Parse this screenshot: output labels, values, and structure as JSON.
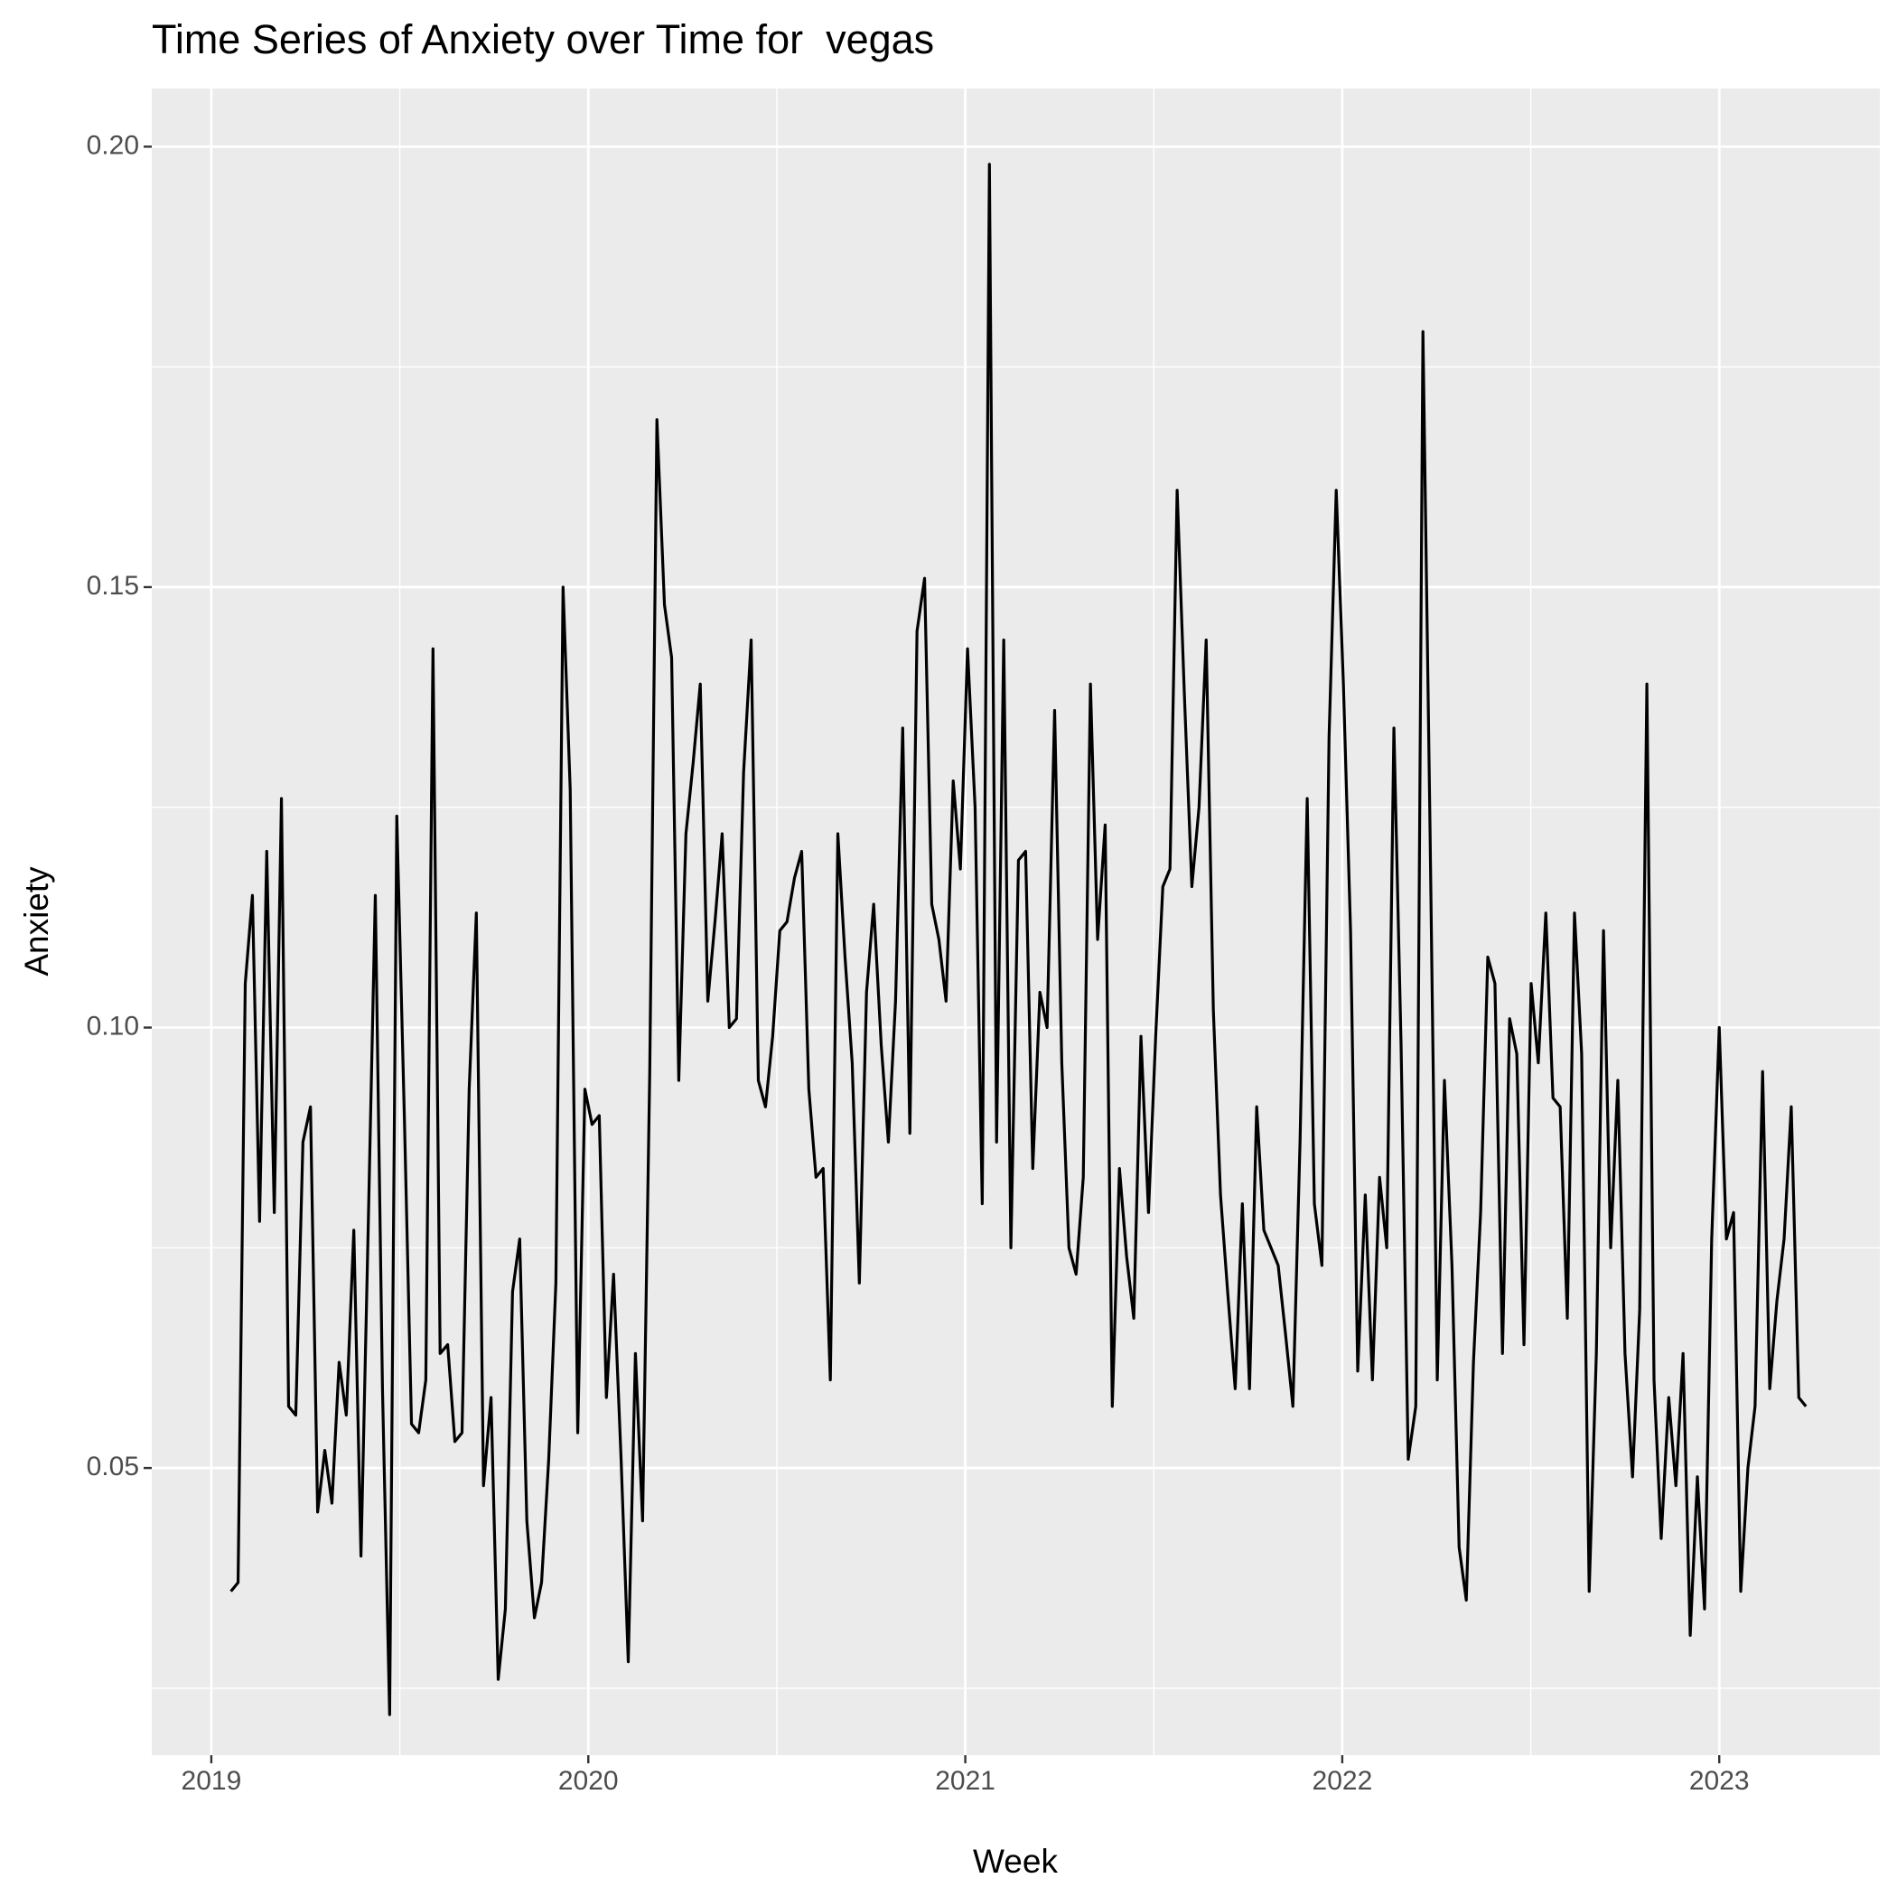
{
  "chart_data": {
    "type": "line",
    "title": "Time Series of Anxiety over Time for  vegas",
    "x_label": "Week",
    "y_label": "Anxiety",
    "color": "#000000",
    "grid": true,
    "xlim": [
      2018.842,
      2023.426
    ],
    "xticks": [
      2019,
      2020,
      2021,
      2022,
      2023
    ],
    "x_minor_ticks": [
      2019.5,
      2020.5,
      2021.5,
      2022.5
    ],
    "ylim": [
      0.0174,
      0.2066
    ],
    "yticks": [
      0.05,
      {
        "value": 0.1,
        "label": "0.10"
      },
      0.15,
      {
        "value": 0.2,
        "label": "0.20"
      }
    ],
    "y_minor_ticks": [
      0.025,
      0.075,
      0.125,
      0.175
    ],
    "x": [
      2019.052,
      2019.071,
      2019.09,
      2019.109,
      2019.128,
      2019.147,
      2019.167,
      2019.186,
      2019.205,
      2019.224,
      2019.243,
      2019.263,
      2019.282,
      2019.301,
      2019.32,
      2019.339,
      2019.358,
      2019.378,
      2019.397,
      2019.416,
      2019.435,
      2019.454,
      2019.473,
      2019.492,
      2019.512,
      2019.531,
      2019.55,
      2019.569,
      2019.588,
      2019.607,
      2019.627,
      2019.646,
      2019.665,
      2019.684,
      2019.703,
      2019.722,
      2019.742,
      2019.761,
      2019.78,
      2019.799,
      2019.818,
      2019.837,
      2019.857,
      2019.876,
      2019.895,
      2019.914,
      2019.933,
      2019.952,
      2019.972,
      2019.991,
      2020.01,
      2020.029,
      2020.048,
      2020.067,
      2020.087,
      2020.106,
      2020.125,
      2020.144,
      2020.163,
      2020.182,
      2020.202,
      2020.221,
      2020.24,
      2020.259,
      2020.278,
      2020.297,
      2020.317,
      2020.336,
      2020.355,
      2020.374,
      2020.393,
      2020.412,
      2020.432,
      2020.451,
      2020.47,
      2020.489,
      2020.508,
      2020.527,
      2020.547,
      2020.566,
      2020.585,
      2020.604,
      2020.623,
      2020.642,
      2020.662,
      2020.681,
      2020.7,
      2020.719,
      2020.738,
      2020.757,
      2020.777,
      2020.796,
      2020.815,
      2020.834,
      2020.853,
      2020.872,
      2020.892,
      2020.911,
      2020.93,
      2020.949,
      2020.968,
      2020.987,
      2021.006,
      2021.026,
      2021.045,
      2021.064,
      2021.083,
      2021.102,
      2021.121,
      2021.141,
      2021.16,
      2021.179,
      2021.198,
      2021.217,
      2021.237,
      2021.256,
      2021.275,
      2021.294,
      2021.313,
      2021.332,
      2021.351,
      2021.371,
      2021.39,
      2021.409,
      2021.428,
      2021.447,
      2021.466,
      2021.486,
      2021.505,
      2021.524,
      2021.543,
      2021.562,
      2021.581,
      2021.601,
      2021.62,
      2021.639,
      2021.658,
      2021.677,
      2021.696,
      2021.716,
      2021.735,
      2021.754,
      2021.773,
      2021.792,
      2021.811,
      2021.83,
      2021.85,
      2021.869,
      2021.888,
      2021.907,
      2021.926,
      2021.946,
      2021.965,
      2021.984,
      2022.003,
      2022.022,
      2022.041,
      2022.061,
      2022.08,
      2022.099,
      2022.118,
      2022.137,
      2022.156,
      2022.175,
      2022.195,
      2022.214,
      2022.233,
      2022.252,
      2022.271,
      2022.291,
      2022.31,
      2022.329,
      2022.348,
      2022.367,
      2022.386,
      2022.405,
      2022.425,
      2022.444,
      2022.463,
      2022.482,
      2022.501,
      2022.52,
      2022.54,
      2022.559,
      2022.578,
      2022.597,
      2022.616,
      2022.635,
      2022.655,
      2022.674,
      2022.693,
      2022.712,
      2022.731,
      2022.75,
      2022.77,
      2022.789,
      2022.808,
      2022.827,
      2022.846,
      2022.866,
      2022.885,
      2022.904,
      2022.923,
      2022.942,
      2022.961,
      2022.98,
      2023.0,
      2023.019,
      2023.038,
      2023.057,
      2023.076,
      2023.095,
      2023.115,
      2023.134,
      2023.153,
      2023.172,
      2023.191,
      2023.211,
      2023.23
    ],
    "values": [
      0.036,
      0.037,
      0.105,
      0.115,
      0.078,
      0.12,
      0.079,
      0.126,
      0.057,
      0.056,
      0.087,
      0.091,
      0.045,
      0.052,
      0.046,
      0.062,
      0.056,
      0.077,
      0.04,
      0.077,
      0.115,
      0.059,
      0.022,
      0.124,
      0.09,
      0.055,
      0.054,
      0.06,
      0.143,
      0.063,
      0.064,
      0.053,
      0.054,
      0.093,
      0.113,
      0.048,
      0.058,
      0.026,
      0.034,
      0.07,
      0.076,
      0.044,
      0.033,
      0.037,
      0.051,
      0.071,
      0.15,
      0.127,
      0.054,
      0.093,
      0.089,
      0.09,
      0.058,
      0.072,
      0.051,
      0.028,
      0.063,
      0.044,
      0.095,
      0.169,
      0.148,
      0.142,
      0.094,
      0.122,
      0.13,
      0.139,
      0.103,
      0.112,
      0.122,
      0.1,
      0.101,
      0.129,
      0.144,
      0.094,
      0.091,
      0.099,
      0.111,
      0.112,
      0.117,
      0.12,
      0.093,
      0.083,
      0.084,
      0.06,
      0.122,
      0.108,
      0.096,
      0.071,
      0.104,
      0.114,
      0.098,
      0.087,
      0.103,
      0.134,
      0.088,
      0.145,
      0.151,
      0.114,
      0.11,
      0.103,
      0.128,
      0.118,
      0.143,
      0.125,
      0.08,
      0.198,
      0.087,
      0.144,
      0.075,
      0.119,
      0.12,
      0.084,
      0.104,
      0.1,
      0.136,
      0.096,
      0.075,
      0.072,
      0.083,
      0.139,
      0.11,
      0.123,
      0.057,
      0.084,
      0.074,
      0.067,
      0.099,
      0.079,
      0.099,
      0.116,
      0.118,
      0.161,
      0.138,
      0.116,
      0.125,
      0.144,
      0.102,
      0.081,
      0.07,
      0.059,
      0.08,
      0.059,
      0.091,
      0.077,
      0.075,
      0.073,
      0.065,
      0.057,
      0.087,
      0.126,
      0.08,
      0.073,
      0.133,
      0.161,
      0.139,
      0.111,
      0.061,
      0.081,
      0.06,
      0.083,
      0.075,
      0.134,
      0.098,
      0.051,
      0.057,
      0.179,
      0.122,
      0.06,
      0.094,
      0.073,
      0.041,
      0.035,
      0.062,
      0.079,
      0.108,
      0.105,
      0.063,
      0.101,
      0.097,
      0.064,
      0.105,
      0.096,
      0.113,
      0.092,
      0.091,
      0.067,
      0.113,
      0.097,
      0.036,
      0.063,
      0.111,
      0.075,
      0.094,
      0.063,
      0.049,
      0.068,
      0.139,
      0.06,
      0.042,
      0.058,
      0.048,
      0.063,
      0.031,
      0.049,
      0.034,
      0.076,
      0.1,
      0.076,
      0.079,
      0.036,
      0.05,
      0.057,
      0.095,
      0.059,
      0.069,
      0.076,
      0.091,
      0.058,
      0.057
    ]
  }
}
